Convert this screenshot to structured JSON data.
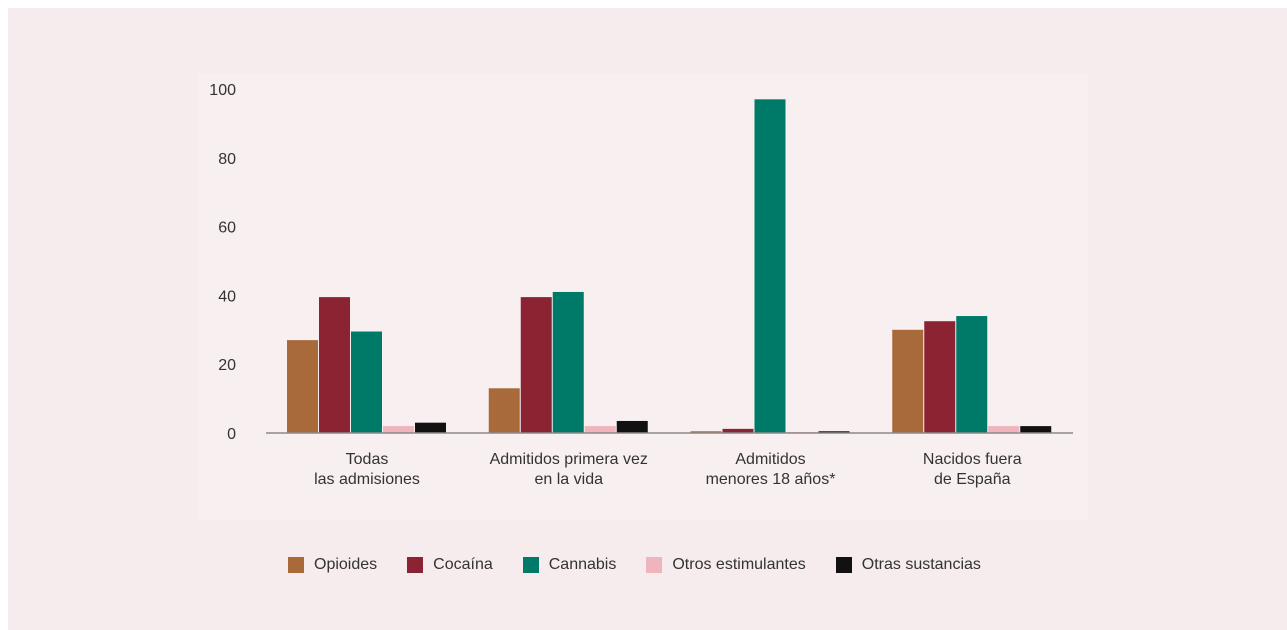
{
  "header_fragment": "",
  "colors": {
    "Opioides": "#a86a3a",
    "Cocaína": "#8c2333",
    "Cannabis": "#007a68",
    "Otros estimulantes": "#f0b4bc",
    "Otras sustancias": "#111111"
  },
  "chart_data": {
    "type": "bar",
    "title": "",
    "xlabel": "",
    "ylabel": "",
    "ylim": [
      0,
      100
    ],
    "yticks": [
      0,
      20,
      40,
      60,
      80,
      100
    ],
    "grid": false,
    "legend_position": "bottom",
    "categories": [
      [
        "Todas",
        "las admisiones"
      ],
      [
        "Admitidos primera vez",
        "en la vida"
      ],
      [
        "Admitidos",
        "menores 18 años*"
      ],
      [
        "Nacidos fuera",
        "de España"
      ]
    ],
    "series": [
      {
        "name": "Opioides",
        "values": [
          27,
          13,
          0.5,
          30
        ]
      },
      {
        "name": "Cocaína",
        "values": [
          39.5,
          39.5,
          1.2,
          32.5
        ]
      },
      {
        "name": "Cannabis",
        "values": [
          29.5,
          41,
          97,
          34
        ]
      },
      {
        "name": "Otros estimulantes",
        "values": [
          2,
          2,
          0.3,
          2
        ]
      },
      {
        "name": "Otras sustancias",
        "values": [
          3,
          3.5,
          0.5,
          2
        ]
      }
    ]
  }
}
